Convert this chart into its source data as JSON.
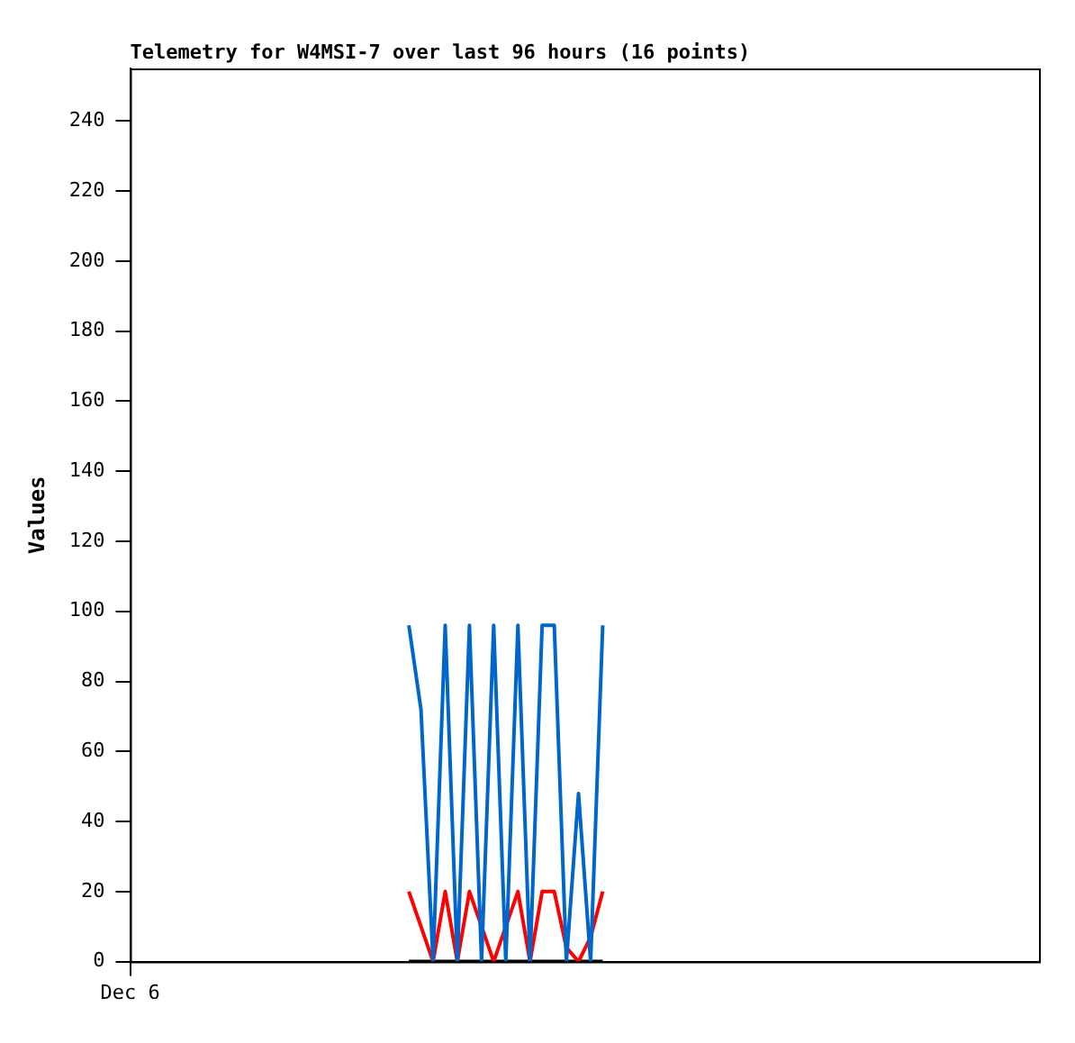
{
  "chart_data": {
    "type": "line",
    "title": "Telemetry for W4MSI-7 over last 96 hours (16 points)",
    "ylabel": "Values",
    "ylim": [
      0,
      255
    ],
    "yticks": [
      0,
      20,
      40,
      60,
      80,
      100,
      120,
      140,
      160,
      180,
      200,
      220,
      240
    ],
    "grid": false,
    "legend": false,
    "marker": "none",
    "line_style": "solid",
    "categories": [
      "Dec 6",
      null,
      null,
      null,
      null,
      null,
      null,
      null,
      null,
      null,
      null,
      null,
      null,
      null,
      null,
      null,
      null,
      null,
      null,
      null,
      null,
      null,
      null,
      null,
      null,
      null,
      null,
      null,
      null,
      null,
      null,
      null,
      null,
      null,
      null,
      null,
      null,
      null,
      null,
      null,
      null,
      null,
      null,
      null,
      null,
      null,
      null,
      null,
      null,
      null,
      null,
      null,
      null,
      null,
      null,
      null,
      null,
      null,
      null,
      null,
      null,
      null,
      null,
      null,
      null,
      null,
      null,
      null,
      null,
      null,
      null,
      null,
      null,
      null,
      null,
      null
    ],
    "series": [
      {
        "color": "#0066cc",
        "values": [
          null,
          null,
          null,
          null,
          null,
          null,
          null,
          null,
          null,
          null,
          null,
          null,
          null,
          null,
          null,
          null,
          null,
          null,
          null,
          null,
          null,
          null,
          null,
          96,
          72,
          0,
          96,
          0,
          96,
          0,
          96,
          0,
          96,
          0,
          96,
          96,
          0,
          48,
          0,
          96,
          null,
          null,
          null,
          null,
          null,
          null,
          null,
          null,
          null,
          null,
          null,
          null,
          null,
          null,
          null,
          null,
          null,
          null,
          null,
          null,
          null,
          null,
          null,
          null,
          null,
          null,
          null,
          null,
          null,
          null,
          null,
          null,
          null,
          null,
          null,
          null
        ]
      },
      {
        "color": "#ff0000",
        "values": [
          null,
          null,
          null,
          null,
          null,
          null,
          null,
          null,
          null,
          null,
          null,
          null,
          null,
          null,
          null,
          null,
          null,
          null,
          null,
          null,
          null,
          null,
          null,
          20,
          10,
          0,
          20,
          0,
          20,
          10,
          0,
          10,
          20,
          0,
          20,
          20,
          4,
          0,
          7,
          20,
          null,
          null,
          null,
          null,
          null,
          null,
          null,
          null,
          null,
          null,
          null,
          null,
          null,
          null,
          null,
          null,
          null,
          null,
          null,
          null,
          null,
          null,
          null,
          null,
          null,
          null,
          null,
          null,
          null,
          null,
          null,
          null,
          null,
          null,
          null,
          null
        ]
      },
      {
        "color": "#000000",
        "values": [
          null,
          null,
          null,
          null,
          null,
          null,
          null,
          null,
          null,
          null,
          null,
          null,
          null,
          null,
          null,
          null,
          null,
          null,
          null,
          null,
          null,
          null,
          null,
          0,
          0,
          0,
          0,
          0,
          0,
          0,
          0,
          0,
          0,
          0,
          0,
          0,
          0,
          0,
          0,
          0,
          null,
          null,
          null,
          null,
          null,
          null,
          null,
          null,
          null,
          null,
          null,
          null,
          null,
          null,
          null,
          null,
          null,
          null,
          null,
          null,
          null,
          null,
          null,
          null,
          null,
          null,
          null,
          null,
          null,
          null,
          null,
          null,
          null,
          null,
          null,
          null
        ]
      }
    ]
  }
}
